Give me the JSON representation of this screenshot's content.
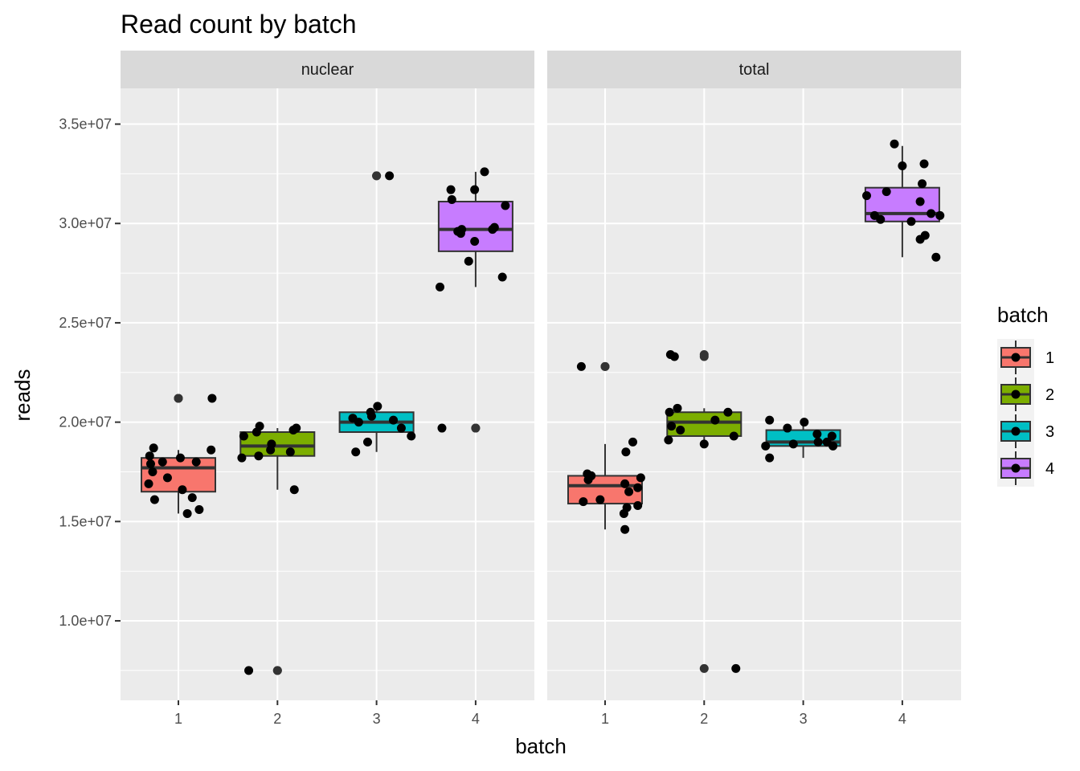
{
  "chart_data": {
    "type": "boxplot",
    "title": "Read count by batch",
    "xlabel": "batch",
    "ylabel": "reads",
    "categories": [
      "1",
      "2",
      "3",
      "4"
    ],
    "ylim": [
      6000000,
      36800000
    ],
    "yticks": [
      {
        "value": 10000000,
        "label": "1.0e+07"
      },
      {
        "value": 15000000,
        "label": "1.5e+07"
      },
      {
        "value": 20000000,
        "label": "2.0e+07"
      },
      {
        "value": 25000000,
        "label": "2.5e+07"
      },
      {
        "value": 30000000,
        "label": "3.0e+07"
      },
      {
        "value": 35000000,
        "label": "3.5e+07"
      }
    ],
    "legend": {
      "title": "batch",
      "position": "right",
      "items": [
        {
          "label": "1",
          "color": "#F8766D"
        },
        {
          "label": "2",
          "color": "#7CAE00"
        },
        {
          "label": "3",
          "color": "#00BFC4"
        },
        {
          "label": "4",
          "color": "#C77CFF"
        }
      ]
    },
    "panels": [
      {
        "name": "nuclear",
        "boxes": [
          {
            "batch": "1",
            "q1": 16500000,
            "median": 17700000,
            "q3": 18200000,
            "whisker_low": 15400000,
            "whisker_high": 18600000,
            "outliers": [
              21200000,
              21200000
            ]
          },
          {
            "batch": "2",
            "q1": 18300000,
            "median": 18800000,
            "q3": 19500000,
            "whisker_low": 16600000,
            "whisker_high": 19700000,
            "outliers": [
              7500000,
              7500000
            ]
          },
          {
            "batch": "3",
            "q1": 19500000,
            "median": 20000000,
            "q3": 20500000,
            "whisker_low": 18500000,
            "whisker_high": 20800000,
            "outliers": [
              32400000,
              32400000
            ]
          },
          {
            "batch": "4",
            "q1": 28600000,
            "median": 29700000,
            "q3": 31100000,
            "whisker_low": 26800000,
            "whisker_high": 32600000,
            "outliers": [
              19700000,
              19700000
            ]
          }
        ],
        "points": [
          {
            "x": 0.7,
            "y": 16900000
          },
          {
            "x": 0.72,
            "y": 17900000
          },
          {
            "x": 0.71,
            "y": 18300000
          },
          {
            "x": 0.76,
            "y": 16100000
          },
          {
            "x": 0.74,
            "y": 17500000
          },
          {
            "x": 0.75,
            "y": 18700000
          },
          {
            "x": 0.84,
            "y": 18000000
          },
          {
            "x": 0.89,
            "y": 17200000
          },
          {
            "x": 1.02,
            "y": 18200000
          },
          {
            "x": 1.04,
            "y": 16600000
          },
          {
            "x": 1.09,
            "y": 15400000
          },
          {
            "x": 1.14,
            "y": 16200000
          },
          {
            "x": 1.18,
            "y": 18000000
          },
          {
            "x": 1.21,
            "y": 15600000
          },
          {
            "x": 1.33,
            "y": 18600000
          },
          {
            "x": 1.34,
            "y": 21200000
          },
          {
            "x": 1.71,
            "y": 7500000
          },
          {
            "x": 1.64,
            "y": 18200000
          },
          {
            "x": 1.66,
            "y": 19300000
          },
          {
            "x": 1.79,
            "y": 19500000
          },
          {
            "x": 1.81,
            "y": 18300000
          },
          {
            "x": 1.82,
            "y": 19800000
          },
          {
            "x": 1.93,
            "y": 18600000
          },
          {
            "x": 1.94,
            "y": 18900000
          },
          {
            "x": 2.13,
            "y": 18500000
          },
          {
            "x": 2.16,
            "y": 19600000
          },
          {
            "x": 2.19,
            "y": 19700000
          },
          {
            "x": 2.17,
            "y": 16600000
          },
          {
            "x": 2.76,
            "y": 20200000
          },
          {
            "x": 2.82,
            "y": 20000000
          },
          {
            "x": 2.79,
            "y": 18500000
          },
          {
            "x": 2.91,
            "y": 19000000
          },
          {
            "x": 2.94,
            "y": 20500000
          },
          {
            "x": 2.95,
            "y": 20300000
          },
          {
            "x": 3.01,
            "y": 20800000
          },
          {
            "x": 3.13,
            "y": 32400000
          },
          {
            "x": 3.17,
            "y": 20100000
          },
          {
            "x": 3.25,
            "y": 19700000
          },
          {
            "x": 3.35,
            "y": 19300000
          },
          {
            "x": 3.64,
            "y": 26800000
          },
          {
            "x": 3.66,
            "y": 19700000
          },
          {
            "x": 3.75,
            "y": 31700000
          },
          {
            "x": 3.76,
            "y": 31200000
          },
          {
            "x": 3.82,
            "y": 29600000
          },
          {
            "x": 3.85,
            "y": 29500000
          },
          {
            "x": 3.86,
            "y": 29700000
          },
          {
            "x": 3.93,
            "y": 28100000
          },
          {
            "x": 3.99,
            "y": 31700000
          },
          {
            "x": 3.99,
            "y": 29100000
          },
          {
            "x": 4.09,
            "y": 32600000
          },
          {
            "x": 4.17,
            "y": 29700000
          },
          {
            "x": 4.19,
            "y": 29800000
          },
          {
            "x": 4.27,
            "y": 27300000
          },
          {
            "x": 4.3,
            "y": 30900000
          }
        ]
      },
      {
        "name": "total",
        "boxes": [
          {
            "batch": "1",
            "q1": 15900000,
            "median": 16800000,
            "q3": 17300000,
            "whisker_low": 14600000,
            "whisker_high": 18900000,
            "outliers": [
              22800000,
              22800000
            ]
          },
          {
            "batch": "2",
            "q1": 19300000,
            "median": 20000000,
            "q3": 20500000,
            "whisker_low": 18900000,
            "whisker_high": 20700000,
            "outliers": [
              7600000,
              23400000,
              23300000
            ]
          },
          {
            "batch": "3",
            "q1": 18800000,
            "median": 19000000,
            "q3": 19600000,
            "whisker_low": 18200000,
            "whisker_high": 20000000,
            "outliers": []
          },
          {
            "batch": "4",
            "q1": 30100000,
            "median": 30500000,
            "q3": 31800000,
            "whisker_low": 28300000,
            "whisker_high": 33900000,
            "outliers": []
          }
        ],
        "points": [
          {
            "x": 0.76,
            "y": 22800000
          },
          {
            "x": 0.78,
            "y": 16000000
          },
          {
            "x": 0.82,
            "y": 17400000
          },
          {
            "x": 0.83,
            "y": 17100000
          },
          {
            "x": 0.86,
            "y": 17300000
          },
          {
            "x": 0.95,
            "y": 16100000
          },
          {
            "x": 1.19,
            "y": 15400000
          },
          {
            "x": 1.2,
            "y": 16900000
          },
          {
            "x": 1.21,
            "y": 18500000
          },
          {
            "x": 1.22,
            "y": 15700000
          },
          {
            "x": 1.24,
            "y": 16500000
          },
          {
            "x": 1.28,
            "y": 19000000
          },
          {
            "x": 1.33,
            "y": 15800000
          },
          {
            "x": 1.33,
            "y": 16700000
          },
          {
            "x": 1.36,
            "y": 17200000
          },
          {
            "x": 1.2,
            "y": 14600000
          },
          {
            "x": 1.64,
            "y": 19100000
          },
          {
            "x": 1.65,
            "y": 20500000
          },
          {
            "x": 1.67,
            "y": 19800000
          },
          {
            "x": 1.66,
            "y": 23400000
          },
          {
            "x": 1.7,
            "y": 23300000
          },
          {
            "x": 1.73,
            "y": 20700000
          },
          {
            "x": 1.76,
            "y": 19600000
          },
          {
            "x": 2.0,
            "y": 18900000
          },
          {
            "x": 2.11,
            "y": 20100000
          },
          {
            "x": 2.24,
            "y": 20500000
          },
          {
            "x": 2.3,
            "y": 19300000
          },
          {
            "x": 2.32,
            "y": 7600000
          },
          {
            "x": 2.62,
            "y": 18800000
          },
          {
            "x": 2.66,
            "y": 18200000
          },
          {
            "x": 2.66,
            "y": 20100000
          },
          {
            "x": 2.84,
            "y": 19700000
          },
          {
            "x": 2.9,
            "y": 18900000
          },
          {
            "x": 3.01,
            "y": 20000000
          },
          {
            "x": 3.14,
            "y": 19400000
          },
          {
            "x": 3.15,
            "y": 19000000
          },
          {
            "x": 3.24,
            "y": 19000000
          },
          {
            "x": 3.29,
            "y": 19300000
          },
          {
            "x": 3.3,
            "y": 18800000
          },
          {
            "x": 3.64,
            "y": 31400000
          },
          {
            "x": 3.72,
            "y": 30400000
          },
          {
            "x": 3.78,
            "y": 30200000
          },
          {
            "x": 3.84,
            "y": 31600000
          },
          {
            "x": 3.92,
            "y": 34000000
          },
          {
            "x": 4.0,
            "y": 32900000
          },
          {
            "x": 4.09,
            "y": 30100000
          },
          {
            "x": 4.18,
            "y": 31100000
          },
          {
            "x": 4.18,
            "y": 29200000
          },
          {
            "x": 4.2,
            "y": 32000000
          },
          {
            "x": 4.22,
            "y": 33000000
          },
          {
            "x": 4.23,
            "y": 29400000
          },
          {
            "x": 4.29,
            "y": 30500000
          },
          {
            "x": 4.34,
            "y": 28300000
          },
          {
            "x": 4.38,
            "y": 30400000
          }
        ]
      }
    ]
  }
}
